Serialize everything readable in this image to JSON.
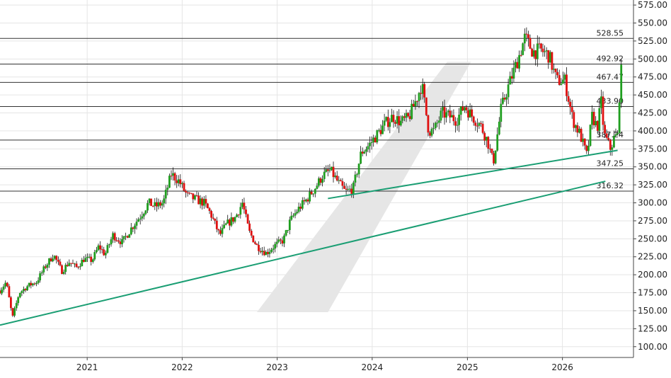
{
  "chart_data": {
    "type": "candlestick",
    "grid": true,
    "y_axis_position": "right",
    "ylim": [
      85,
      582
    ],
    "xlim": [
      "2020-02-01",
      "2026-10-01"
    ],
    "y_ticks": [
      "575.00",
      "550.00",
      "525.00",
      "500.00",
      "475.00",
      "450.00",
      "425.00",
      "400.00",
      "375.00",
      "350.00",
      "325.00",
      "300.00",
      "275.00",
      "250.00",
      "225.00",
      "200.00",
      "175.00",
      "150.00",
      "125.00",
      "100.00"
    ],
    "x_ticks": [
      {
        "label": "2021",
        "date": "2021-01-01"
      },
      {
        "label": "2022",
        "date": "2022-01-01"
      },
      {
        "label": "2023",
        "date": "2023-01-01"
      },
      {
        "label": "2024",
        "date": "2024-01-01"
      },
      {
        "label": "2025",
        "date": "2025-01-01"
      },
      {
        "label": "2026",
        "date": "2026-01-01"
      }
    ],
    "levels": [
      {
        "label": "528.55",
        "value": 528.55
      },
      {
        "label": "492.92",
        "value": 492.92
      },
      {
        "label": "467.47",
        "value": 467.47
      },
      {
        "label": "433.90",
        "value": 433.9
      },
      {
        "label": "387.24",
        "value": 387.24
      },
      {
        "label": "347.25",
        "value": 347.25
      },
      {
        "label": "316.32",
        "value": 316.32
      }
    ],
    "trendlines": [
      {
        "name": "long-term support",
        "from": {
          "date": "2020-02-01",
          "value": 130
        },
        "to": {
          "date": "2026-06-15",
          "value": 330
        },
        "color": "#1a9e73"
      },
      {
        "name": "medium-term support",
        "from": {
          "date": "2023-07-15",
          "value": 306
        },
        "to": {
          "date": "2026-08-01",
          "value": 373
        },
        "color": "#1a9e73"
      }
    ],
    "highlight_band": {
      "bottom_from": "2022-10-15",
      "bottom_to": "2023-07-15",
      "bottom_value": 148,
      "top_from": "2024-10-15",
      "top_to": "2025-01-15",
      "top_value": 496,
      "color": "#e6e6e6"
    },
    "colors": {
      "up": "#1f9e1f",
      "down": "#e01010",
      "wick": "#111111",
      "grid": "#e5e5e5",
      "level": "#333333"
    },
    "price_path": [
      [
        "2020-02-01",
        178
      ],
      [
        "2020-02-25",
        190
      ],
      [
        "2020-03-20",
        140
      ],
      [
        "2020-04-15",
        175
      ],
      [
        "2020-05-20",
        185
      ],
      [
        "2020-06-20",
        190
      ],
      [
        "2020-07-25",
        212
      ],
      [
        "2020-08-25",
        228
      ],
      [
        "2020-09-25",
        205
      ],
      [
        "2020-10-25",
        218
      ],
      [
        "2020-11-20",
        210
      ],
      [
        "2020-12-20",
        222
      ],
      [
        "2021-01-20",
        220
      ],
      [
        "2021-02-15",
        240
      ],
      [
        "2021-03-10",
        228
      ],
      [
        "2021-04-10",
        255
      ],
      [
        "2021-05-15",
        245
      ],
      [
        "2021-06-20",
        265
      ],
      [
        "2021-07-25",
        282
      ],
      [
        "2021-08-25",
        300
      ],
      [
        "2021-09-20",
        295
      ],
      [
        "2021-10-20",
        300
      ],
      [
        "2021-11-20",
        340
      ],
      [
        "2021-12-20",
        330
      ],
      [
        "2022-01-20",
        310
      ],
      [
        "2022-02-20",
        305
      ],
      [
        "2022-03-25",
        300
      ],
      [
        "2022-04-20",
        285
      ],
      [
        "2022-05-25",
        255
      ],
      [
        "2022-06-20",
        270
      ],
      [
        "2022-07-25",
        280
      ],
      [
        "2022-08-20",
        300
      ],
      [
        "2022-09-15",
        260
      ],
      [
        "2022-10-15",
        240
      ],
      [
        "2022-11-20",
        230
      ],
      [
        "2022-12-20",
        240
      ],
      [
        "2023-01-25",
        248
      ],
      [
        "2023-02-20",
        275
      ],
      [
        "2023-03-20",
        290
      ],
      [
        "2023-04-25",
        305
      ],
      [
        "2023-05-25",
        320
      ],
      [
        "2023-06-25",
        338
      ],
      [
        "2023-07-25",
        345
      ],
      [
        "2023-08-20",
        330
      ],
      [
        "2023-09-20",
        315
      ],
      [
        "2023-10-20",
        320
      ],
      [
        "2023-11-20",
        370
      ],
      [
        "2023-12-20",
        380
      ],
      [
        "2024-01-20",
        395
      ],
      [
        "2024-02-20",
        410
      ],
      [
        "2024-03-20",
        420
      ],
      [
        "2024-04-20",
        412
      ],
      [
        "2024-05-20",
        418
      ],
      [
        "2024-06-20",
        445
      ],
      [
        "2024-07-10",
        465
      ],
      [
        "2024-08-05",
        400
      ],
      [
        "2024-08-25",
        400
      ],
      [
        "2024-09-25",
        425
      ],
      [
        "2024-10-25",
        420
      ],
      [
        "2024-11-20",
        415
      ],
      [
        "2024-12-20",
        435
      ],
      [
        "2025-01-20",
        420
      ],
      [
        "2025-02-20",
        408
      ],
      [
        "2025-03-20",
        385
      ],
      [
        "2025-04-10",
        355
      ],
      [
        "2025-05-10",
        430
      ],
      [
        "2025-06-10",
        465
      ],
      [
        "2025-07-10",
        495
      ],
      [
        "2025-08-10",
        530
      ],
      [
        "2025-09-10",
        510
      ],
      [
        "2025-10-10",
        512
      ],
      [
        "2025-11-10",
        505
      ],
      [
        "2025-12-10",
        470
      ],
      [
        "2026-01-10",
        470
      ],
      [
        "2026-02-10",
        415
      ],
      [
        "2026-03-10",
        395
      ],
      [
        "2026-04-05",
        365
      ],
      [
        "2026-04-25",
        420
      ],
      [
        "2026-05-15",
        405
      ],
      [
        "2026-05-30",
        440
      ],
      [
        "2026-06-10",
        395
      ],
      [
        "2026-07-05",
        375
      ],
      [
        "2026-07-20",
        392
      ],
      [
        "2026-08-01",
        393
      ],
      [
        "2026-08-10",
        465
      ],
      [
        "2026-08-20",
        499
      ]
    ]
  }
}
